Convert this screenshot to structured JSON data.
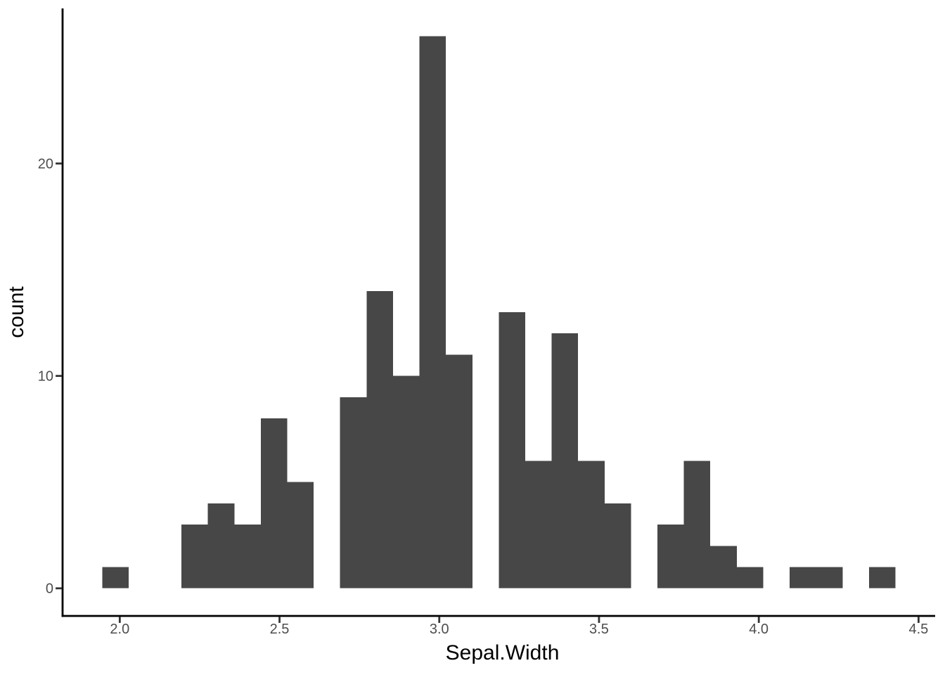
{
  "chart_data": {
    "type": "bar",
    "variant": "histogram",
    "title": "",
    "xlabel": "Sepal.Width",
    "ylabel": "count",
    "grid": false,
    "legend": "none",
    "background": "#FFFFFF",
    "bar_color": "#474747",
    "axis_line_color": "#000000",
    "tick_mark_color": "#333333",
    "tick_label_color": "#4D4D4D",
    "axis_title_color": "#000000",
    "x_tick_values": [
      2.0,
      2.5,
      3.0,
      3.5,
      4.0,
      4.5
    ],
    "x_tick_labels": [
      "2.0",
      "2.5",
      "3.0",
      "3.5",
      "4.0",
      "4.5"
    ],
    "y_tick_values": [
      0,
      10,
      20
    ],
    "y_tick_labels": [
      "0",
      "10",
      "20"
    ],
    "xlim": [
      1.821,
      4.552
    ],
    "ylim": [
      -1.3,
      27.3
    ],
    "bins": {
      "start": 1.9448,
      "width": 0.08276,
      "counts": [
        1,
        0,
        0,
        3,
        4,
        3,
        8,
        5,
        0,
        9,
        14,
        10,
        26,
        11,
        0,
        13,
        6,
        12,
        6,
        4,
        0,
        3,
        6,
        2,
        1,
        0,
        1,
        1,
        0,
        1
      ]
    }
  }
}
